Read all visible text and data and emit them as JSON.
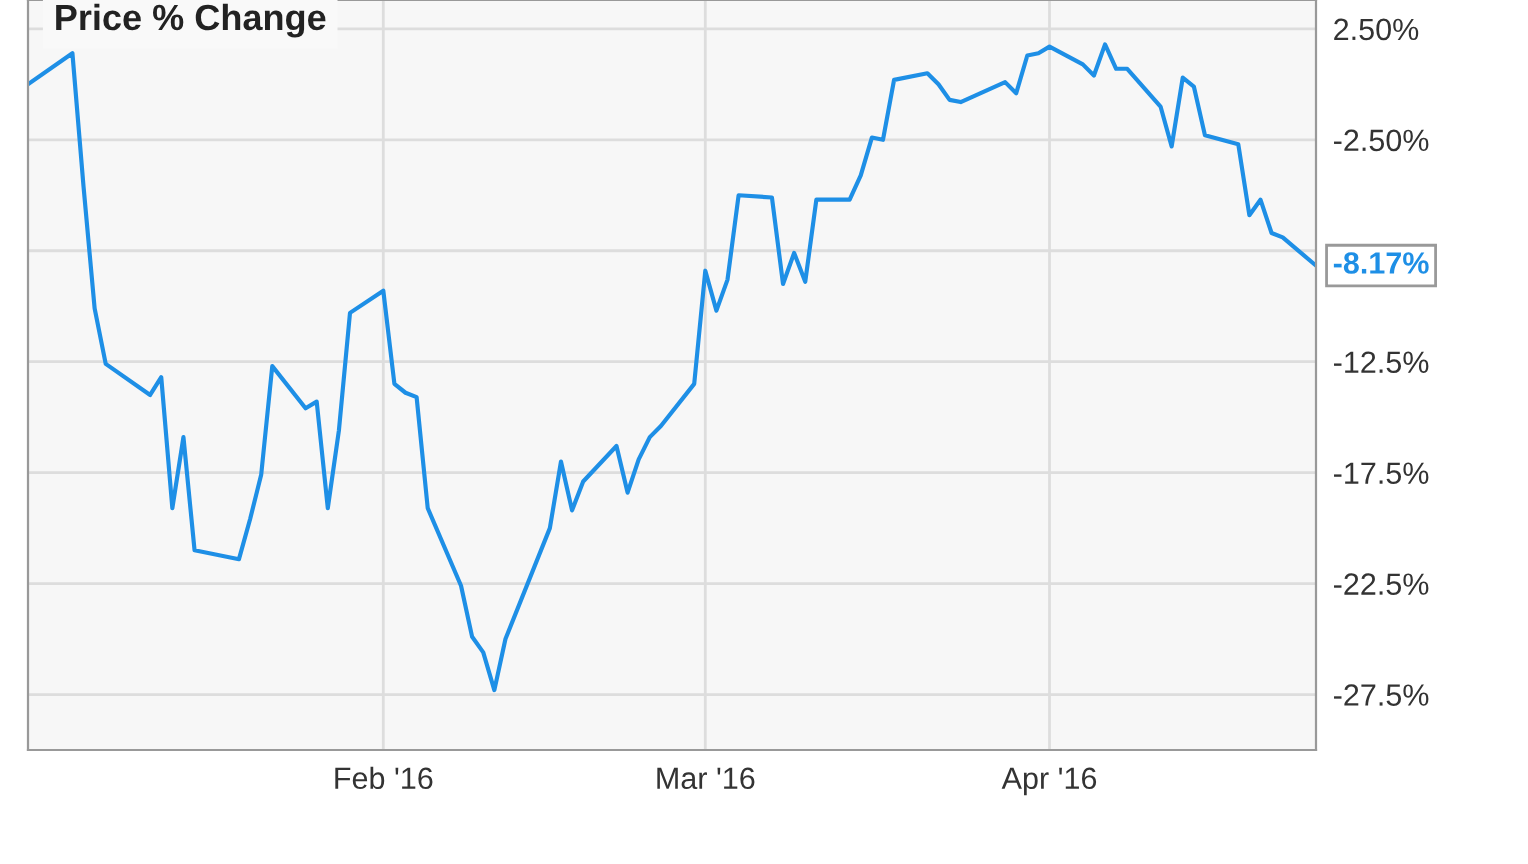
{
  "chart_data": {
    "type": "line",
    "title": "Price % Change",
    "x": [
      "2015-12-31",
      "2016-01-04",
      "2016-01-05",
      "2016-01-06",
      "2016-01-07",
      "2016-01-11",
      "2016-01-12",
      "2016-01-13",
      "2016-01-14",
      "2016-01-15",
      "2016-01-19",
      "2016-01-20",
      "2016-01-21",
      "2016-01-22",
      "2016-01-25",
      "2016-01-26",
      "2016-01-27",
      "2016-01-28",
      "2016-01-29",
      "2016-02-01",
      "2016-02-02",
      "2016-02-03",
      "2016-02-04",
      "2016-02-05",
      "2016-02-08",
      "2016-02-09",
      "2016-02-10",
      "2016-02-11",
      "2016-02-12",
      "2016-02-16",
      "2016-02-17",
      "2016-02-18",
      "2016-02-19",
      "2016-02-22",
      "2016-02-23",
      "2016-02-24",
      "2016-02-25",
      "2016-02-26",
      "2016-02-29",
      "2016-03-01",
      "2016-03-02",
      "2016-03-03",
      "2016-03-04",
      "2016-03-07",
      "2016-03-08",
      "2016-03-09",
      "2016-03-10",
      "2016-03-11",
      "2016-03-14",
      "2016-03-15",
      "2016-03-16",
      "2016-03-17",
      "2016-03-18",
      "2016-03-21",
      "2016-03-22",
      "2016-03-23",
      "2016-03-24",
      "2016-03-28",
      "2016-03-29",
      "2016-03-30",
      "2016-03-31",
      "2016-04-01",
      "2016-04-04",
      "2016-04-05",
      "2016-04-06",
      "2016-04-07",
      "2016-04-08",
      "2016-04-11",
      "2016-04-12",
      "2016-04-13",
      "2016-04-14",
      "2016-04-15",
      "2016-04-18",
      "2016-04-19",
      "2016-04-20",
      "2016-04-21",
      "2016-04-22",
      "2016-04-25"
    ],
    "series": [
      {
        "color": "#1e8fe6",
        "values": [
          0.0,
          1.4,
          -4.6,
          -10.1,
          -12.6,
          -14.0,
          -13.2,
          -19.1,
          -15.9,
          -21.0,
          -21.4,
          -19.6,
          -17.6,
          -12.7,
          -14.6,
          -14.3,
          -19.1,
          -15.6,
          -10.3,
          -9.3,
          -13.5,
          -13.9,
          -14.1,
          -19.1,
          -22.6,
          -24.9,
          -25.6,
          -27.3,
          -25.0,
          -20.0,
          -17.0,
          -19.2,
          -17.9,
          -16.3,
          -18.4,
          -16.9,
          -15.9,
          -15.4,
          -13.5,
          -8.4,
          -10.2,
          -8.8,
          -5.0,
          -5.1,
          -9.0,
          -7.6,
          -8.9,
          -5.2,
          -5.2,
          -4.1,
          -2.4,
          -2.5,
          0.2,
          0.5,
          0.0,
          -0.7,
          -0.8,
          0.1,
          -0.4,
          1.3,
          1.4,
          1.7,
          0.9,
          0.4,
          1.8,
          0.7,
          0.7,
          -1.0,
          -2.8,
          0.3,
          -0.1,
          -2.3,
          -2.7,
          -5.9,
          -5.2,
          -6.7,
          -6.9,
          -8.17
        ]
      }
    ],
    "xlim": [
      "2015-12-31",
      "2016-04-25"
    ],
    "xticks": [
      {
        "value": "2016-02-01",
        "label": "Feb '16"
      },
      {
        "value": "2016-03-01",
        "label": "Mar '16"
      },
      {
        "value": "2016-04-01",
        "label": "Apr '16"
      }
    ],
    "ylim": [
      -30,
      3.8
    ],
    "yticks": [
      {
        "value": 2.5,
        "label": "2.50%"
      },
      {
        "value": -2.5,
        "label": "-2.50%"
      },
      {
        "value": -7.5,
        "label": null
      },
      {
        "value": -12.5,
        "label": "-12.5%"
      },
      {
        "value": -17.5,
        "label": "-17.5%"
      },
      {
        "value": -22.5,
        "label": "-22.5%"
      },
      {
        "value": -27.5,
        "label": "-27.5%"
      }
    ],
    "grid": true,
    "marker": "none",
    "line_style": "solid",
    "legend": false,
    "annotations": [
      {
        "text": "-8.17%",
        "x": "2016-04-25",
        "y": -8.17
      }
    ]
  }
}
